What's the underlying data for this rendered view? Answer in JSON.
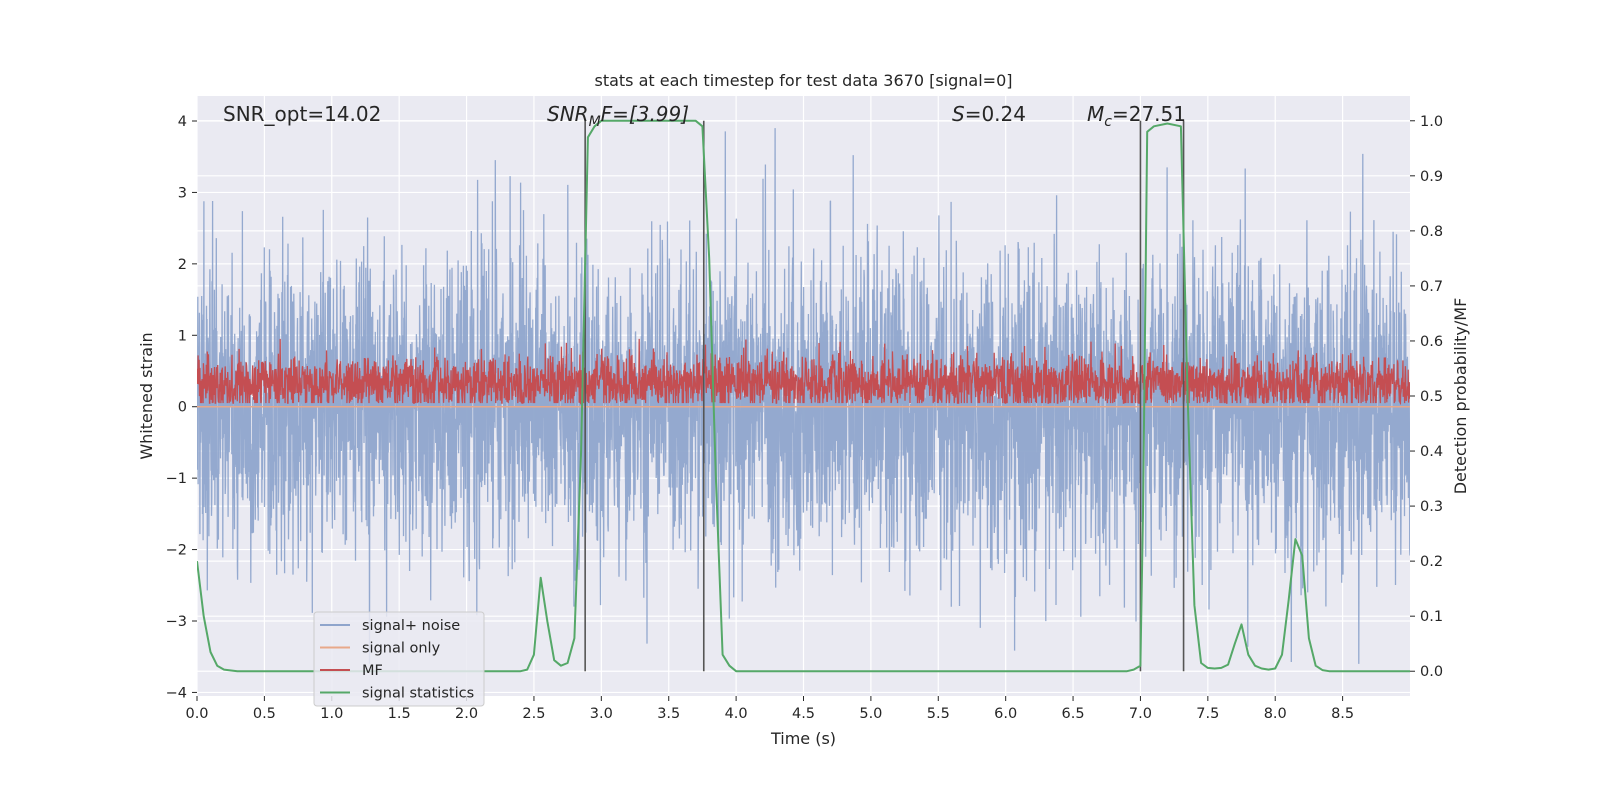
{
  "chart_data": {
    "type": "line",
    "title": "stats at each timestep for test data 3670 [signal=0]",
    "xlabel": "Time (s)",
    "ylabel": "Whitened strain",
    "y2label": "Detection probability/MF",
    "xlim": [
      0.0,
      9.0
    ],
    "ylim": [
      -4.05,
      4.35
    ],
    "y2lim": [
      -0.045,
      1.045
    ],
    "xticks": [
      "0.0",
      "0.5",
      "1.0",
      "1.5",
      "2.0",
      "2.5",
      "3.0",
      "3.5",
      "4.0",
      "4.5",
      "5.0",
      "5.5",
      "6.0",
      "6.5",
      "7.0",
      "7.5",
      "8.0",
      "8.5"
    ],
    "yticks": [
      "4",
      "3",
      "2",
      "1",
      "0",
      "−1",
      "−2",
      "−3",
      "−4"
    ],
    "y2ticks": [
      "1.0",
      "0.9",
      "0.8",
      "0.7",
      "0.6",
      "0.5",
      "0.4",
      "0.3",
      "0.2",
      "0.1",
      "0.0"
    ],
    "grid": true,
    "legend_position": "lower-left",
    "series": [
      {
        "name": "signal+ noise",
        "color": "#8fa5cc",
        "axis": "left",
        "style": "dense-noise",
        "amplitude_range": [
          -3.6,
          3.9
        ],
        "typical_std": 1.0
      },
      {
        "name": "signal only",
        "color": "#e8a889",
        "axis": "left",
        "style": "flat",
        "value": 0.0
      },
      {
        "name": "MF",
        "color": "#c44e52",
        "axis": "left",
        "style": "dense-noise",
        "band": [
          0.05,
          0.95
        ]
      },
      {
        "name": "signal statistics",
        "color": "#55a868",
        "axis": "right",
        "x": [
          0.0,
          0.05,
          0.1,
          0.15,
          0.2,
          0.3,
          0.5,
          1.0,
          1.5,
          2.0,
          2.4,
          2.45,
          2.5,
          2.55,
          2.6,
          2.65,
          2.7,
          2.75,
          2.8,
          2.85,
          2.9,
          2.95,
          3.0,
          3.05,
          3.2,
          3.4,
          3.6,
          3.7,
          3.75,
          3.8,
          3.85,
          3.9,
          3.95,
          4.0,
          4.5,
          5.0,
          5.5,
          6.0,
          6.5,
          6.9,
          6.95,
          7.0,
          7.02,
          7.05,
          7.1,
          7.2,
          7.3,
          7.35,
          7.4,
          7.45,
          7.5,
          7.55,
          7.6,
          7.65,
          7.7,
          7.75,
          7.8,
          7.85,
          7.9,
          7.95,
          8.0,
          8.05,
          8.1,
          8.15,
          8.2,
          8.25,
          8.3,
          8.35,
          8.4,
          8.5,
          8.7,
          9.0
        ],
        "values": [
          0.2,
          0.1,
          0.035,
          0.01,
          0.003,
          0.0,
          0.0,
          0.0,
          0.0,
          0.0,
          0.0,
          0.003,
          0.03,
          0.17,
          0.09,
          0.02,
          0.01,
          0.015,
          0.06,
          0.4,
          0.97,
          0.99,
          1.0,
          1.0,
          1.0,
          1.0,
          1.0,
          1.0,
          0.99,
          0.75,
          0.35,
          0.03,
          0.01,
          0.0,
          0.0,
          0.0,
          0.0,
          0.0,
          0.0,
          0.0,
          0.003,
          0.01,
          0.3,
          0.98,
          0.99,
          0.995,
          0.99,
          0.5,
          0.12,
          0.015,
          0.006,
          0.005,
          0.006,
          0.012,
          0.05,
          0.085,
          0.03,
          0.01,
          0.005,
          0.003,
          0.005,
          0.03,
          0.13,
          0.24,
          0.21,
          0.06,
          0.01,
          0.002,
          0.0,
          0.0,
          0.0,
          0.0
        ]
      }
    ],
    "vlines": [
      {
        "x": 2.88,
        "color": "#555555"
      },
      {
        "x": 3.76,
        "color": "#555555"
      },
      {
        "x": 7.0,
        "color": "#555555"
      },
      {
        "x": 7.32,
        "color": "#555555"
      }
    ],
    "annotations": [
      {
        "id": "snr-opt",
        "text": "SNR_opt=14.02"
      },
      {
        "id": "snr-mf",
        "base": "SNR",
        "sub": "M",
        "rest": "F=[3.99]"
      },
      {
        "id": "spin",
        "base": "S",
        "rest": "=0.24"
      },
      {
        "id": "chirp-mass",
        "base": "M",
        "sub": "c",
        "rest": "=27.51"
      }
    ]
  }
}
